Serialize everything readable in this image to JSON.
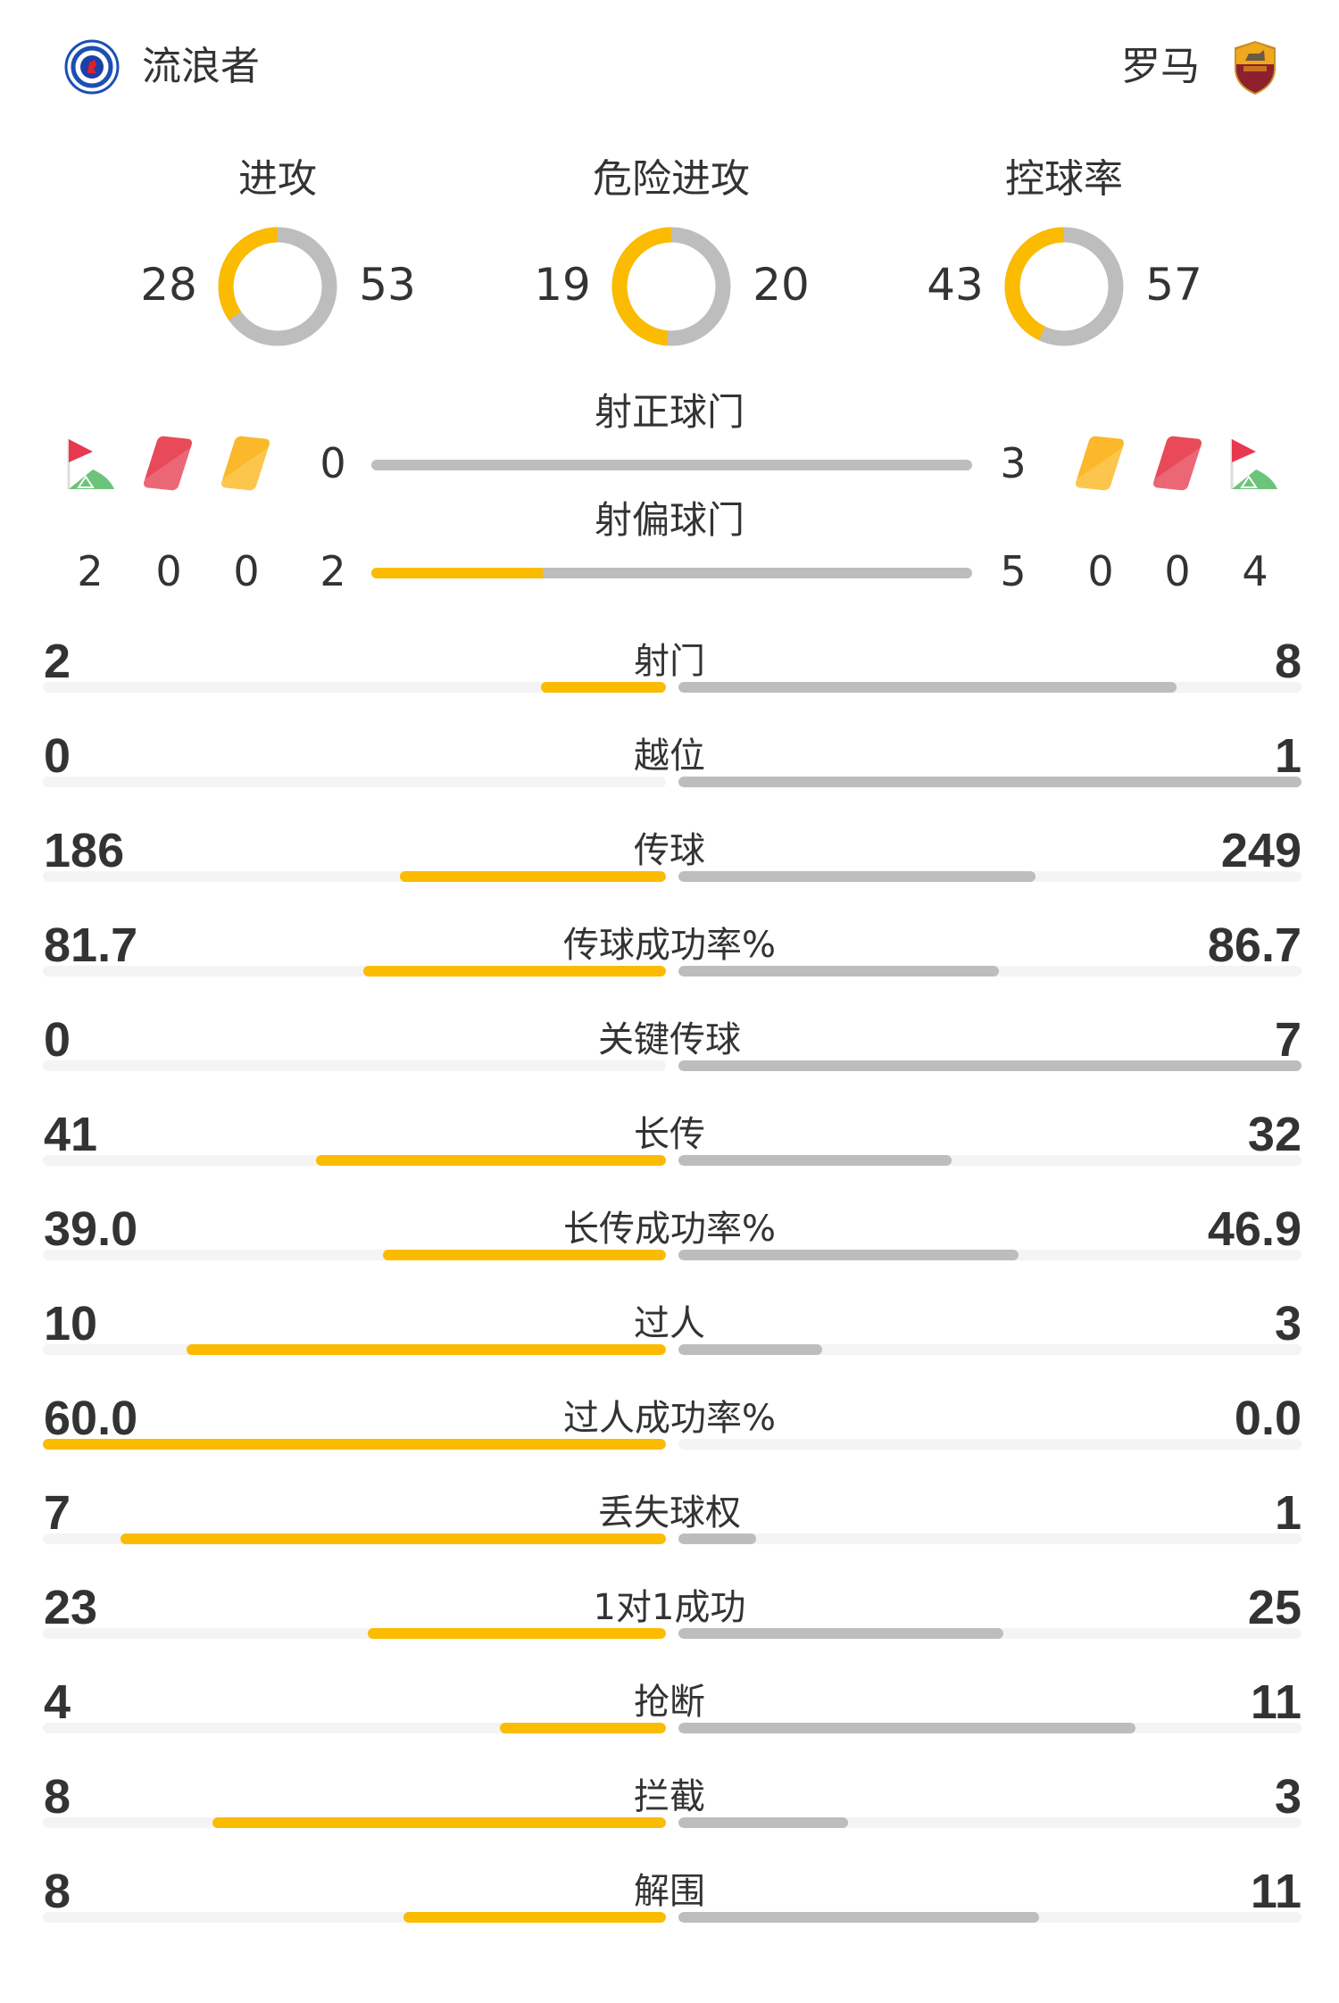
{
  "colors": {
    "home": "#fbbb00",
    "away": "#bdbdbd",
    "track": "#f4f4f4",
    "text": "#333333"
  },
  "header": {
    "home": {
      "name": "流浪者",
      "logo_icon": "rangers-crest",
      "logo_text": "RANGERS FOOTBALL CLUB"
    },
    "away": {
      "name": "罗马",
      "logo_icon": "roma-shield",
      "logo_text": "ROMA"
    }
  },
  "donuts": [
    {
      "title": "进攻",
      "home": "28",
      "away": "53",
      "home_val": 28,
      "away_val": 53
    },
    {
      "title": "危险进攻",
      "home": "19",
      "away": "20",
      "home_val": 19,
      "away_val": 20
    },
    {
      "title": "控球率",
      "home": "43",
      "away": "57",
      "home_val": 43,
      "away_val": 57
    }
  ],
  "shots": {
    "on_target": {
      "title": "射正球门",
      "home": "0",
      "away": "3",
      "home_val": 0,
      "away_val": 3
    },
    "off_target": {
      "title": "射偏球门",
      "home": "2",
      "away": "5",
      "home_val": 2,
      "away_val": 5
    }
  },
  "discipline": {
    "home": {
      "corners": "2",
      "red_cards": "0",
      "yellow_cards": "0"
    },
    "away": {
      "corners": "4",
      "red_cards": "0",
      "yellow_cards": "0"
    },
    "icons": [
      "corner-flag",
      "red-card",
      "yellow-card"
    ]
  },
  "stats": [
    {
      "label": "射门",
      "home": "2",
      "away": "8"
    },
    {
      "label": "越位",
      "home": "0",
      "away": "1"
    },
    {
      "label": "传球",
      "home": "186",
      "away": "249"
    },
    {
      "label": "传球成功率%",
      "home": "81.7",
      "away": "86.7"
    },
    {
      "label": "关键传球",
      "home": "0",
      "away": "7"
    },
    {
      "label": "长传",
      "home": "41",
      "away": "32"
    },
    {
      "label": "长传成功率%",
      "home": "39.0",
      "away": "46.9"
    },
    {
      "label": "过人",
      "home": "10",
      "away": "3"
    },
    {
      "label": "过人成功率%",
      "home": "60.0",
      "away": "0.0"
    },
    {
      "label": "丢失球权",
      "home": "7",
      "away": "1"
    },
    {
      "label": "1对1成功",
      "home": "23",
      "away": "25"
    },
    {
      "label": "抢断",
      "home": "4",
      "away": "11"
    },
    {
      "label": "拦截",
      "home": "8",
      "away": "3"
    },
    {
      "label": "解围",
      "home": "8",
      "away": "11"
    }
  ]
}
